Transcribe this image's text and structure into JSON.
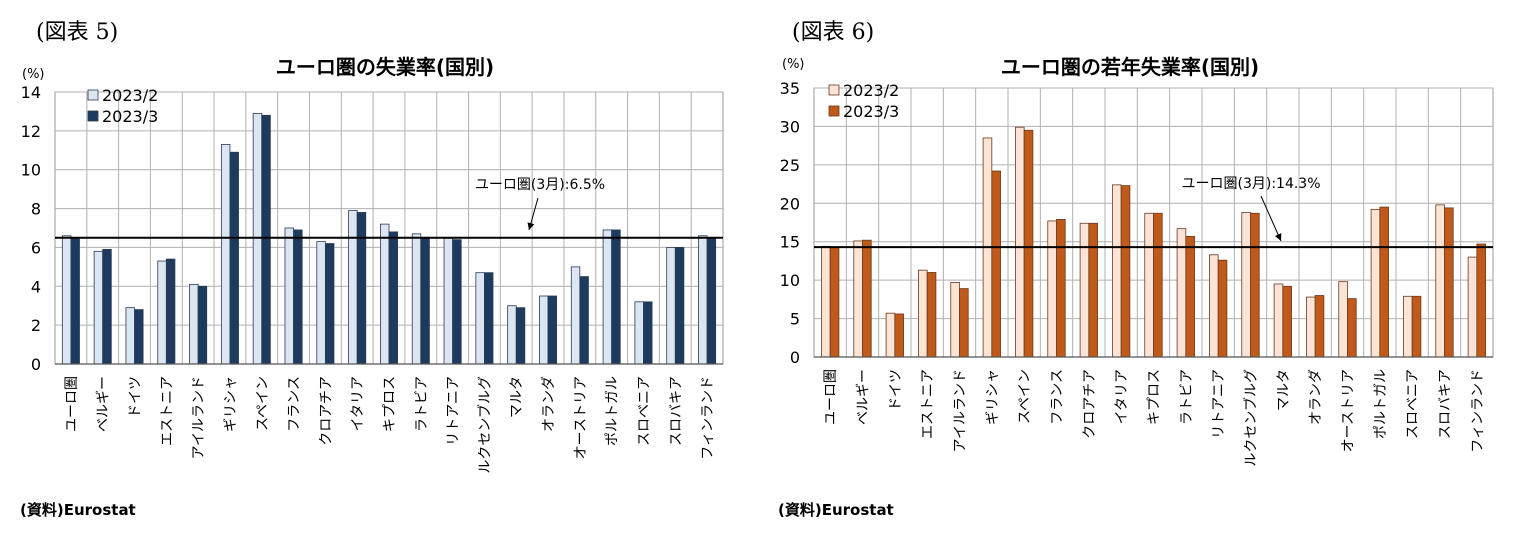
{
  "panels": [
    {
      "figure_label": "(図表 5)",
      "source": "(資料)Eurostat",
      "colors": {
        "s1": "#dce6f2",
        "s2": "#1f3a5f",
        "border": "#2a3b55"
      },
      "chart_data": {
        "type": "bar",
        "title": "ユーロ圏の失業率(国別)",
        "ylabel": "(%)",
        "ylim": [
          0,
          14
        ],
        "yticks": [
          0,
          2,
          4,
          6,
          8,
          10,
          12,
          14
        ],
        "grid": true,
        "legend_position": "top-left",
        "categories": [
          "ユーロ圏",
          "ベルギー",
          "ドイツ",
          "エストニア",
          "アイルランド",
          "ギリシャ",
          "スペイン",
          "フランス",
          "クロアチア",
          "イタリア",
          "キプロス",
          "ラトビア",
          "リトアニア",
          "ルクセンブルグ",
          "マルタ",
          "オランダ",
          "オーストリア",
          "ポルトガル",
          "スロベニア",
          "スロバキア",
          "フィンランド"
        ],
        "series": [
          {
            "name": "2023/2",
            "values": [
              6.6,
              5.8,
              2.9,
              5.3,
              4.1,
              11.3,
              12.9,
              7.0,
              6.3,
              7.9,
              7.2,
              6.7,
              6.5,
              4.7,
              3.0,
              3.5,
              5.0,
              6.9,
              3.2,
              6.0,
              6.6
            ]
          },
          {
            "name": "2023/3",
            "values": [
              6.5,
              5.9,
              2.8,
              5.4,
              4.0,
              10.9,
              12.8,
              6.9,
              6.2,
              7.8,
              6.8,
              6.5,
              6.4,
              4.7,
              2.9,
              3.5,
              4.5,
              6.9,
              3.2,
              6.0,
              6.5
            ]
          }
        ],
        "reference_line": {
          "value": 6.5,
          "label": "ユーロ圏(3月):6.5%"
        }
      }
    },
    {
      "figure_label": "(図表 6)",
      "source": "(資料)Eurostat",
      "colors": {
        "s1": "#fbe3d6",
        "s2": "#c05a1a",
        "border": "#6b3a1e"
      },
      "chart_data": {
        "type": "bar",
        "title": "ユーロ圏の若年失業率(国別)",
        "ylabel": "(%)",
        "ylim": [
          0,
          35
        ],
        "yticks": [
          0,
          5,
          10,
          15,
          20,
          25,
          30,
          35
        ],
        "grid": true,
        "legend_position": "top-left",
        "categories": [
          "ユーロ圏",
          "ベルギー",
          "ドイツ",
          "エストニア",
          "アイルランド",
          "ギリシャ",
          "スペイン",
          "フランス",
          "クロアチア",
          "イタリア",
          "キプロス",
          "ラトビア",
          "リトアニア",
          "ルクセンブルグ",
          "マルタ",
          "オランダ",
          "オーストリア",
          "ポルトガル",
          "スロベニア",
          "スロバキア",
          "フィンランド"
        ],
        "series": [
          {
            "name": "2023/2",
            "values": [
              14.4,
              15.1,
              5.7,
              11.3,
              9.7,
              28.5,
              29.9,
              17.7,
              17.4,
              22.4,
              18.7,
              16.7,
              13.3,
              18.8,
              9.5,
              7.8,
              9.8,
              19.2,
              7.9,
              19.8,
              13.0
            ]
          },
          {
            "name": "2023/3",
            "values": [
              14.3,
              15.2,
              5.6,
              11.0,
              8.9,
              24.2,
              29.5,
              17.9,
              17.4,
              22.3,
              18.7,
              15.7,
              12.6,
              18.7,
              9.2,
              8.0,
              7.6,
              19.5,
              7.9,
              19.4,
              14.7
            ]
          }
        ],
        "reference_line": {
          "value": 14.3,
          "label": "ユーロ圏(3月):14.3%"
        }
      }
    }
  ]
}
